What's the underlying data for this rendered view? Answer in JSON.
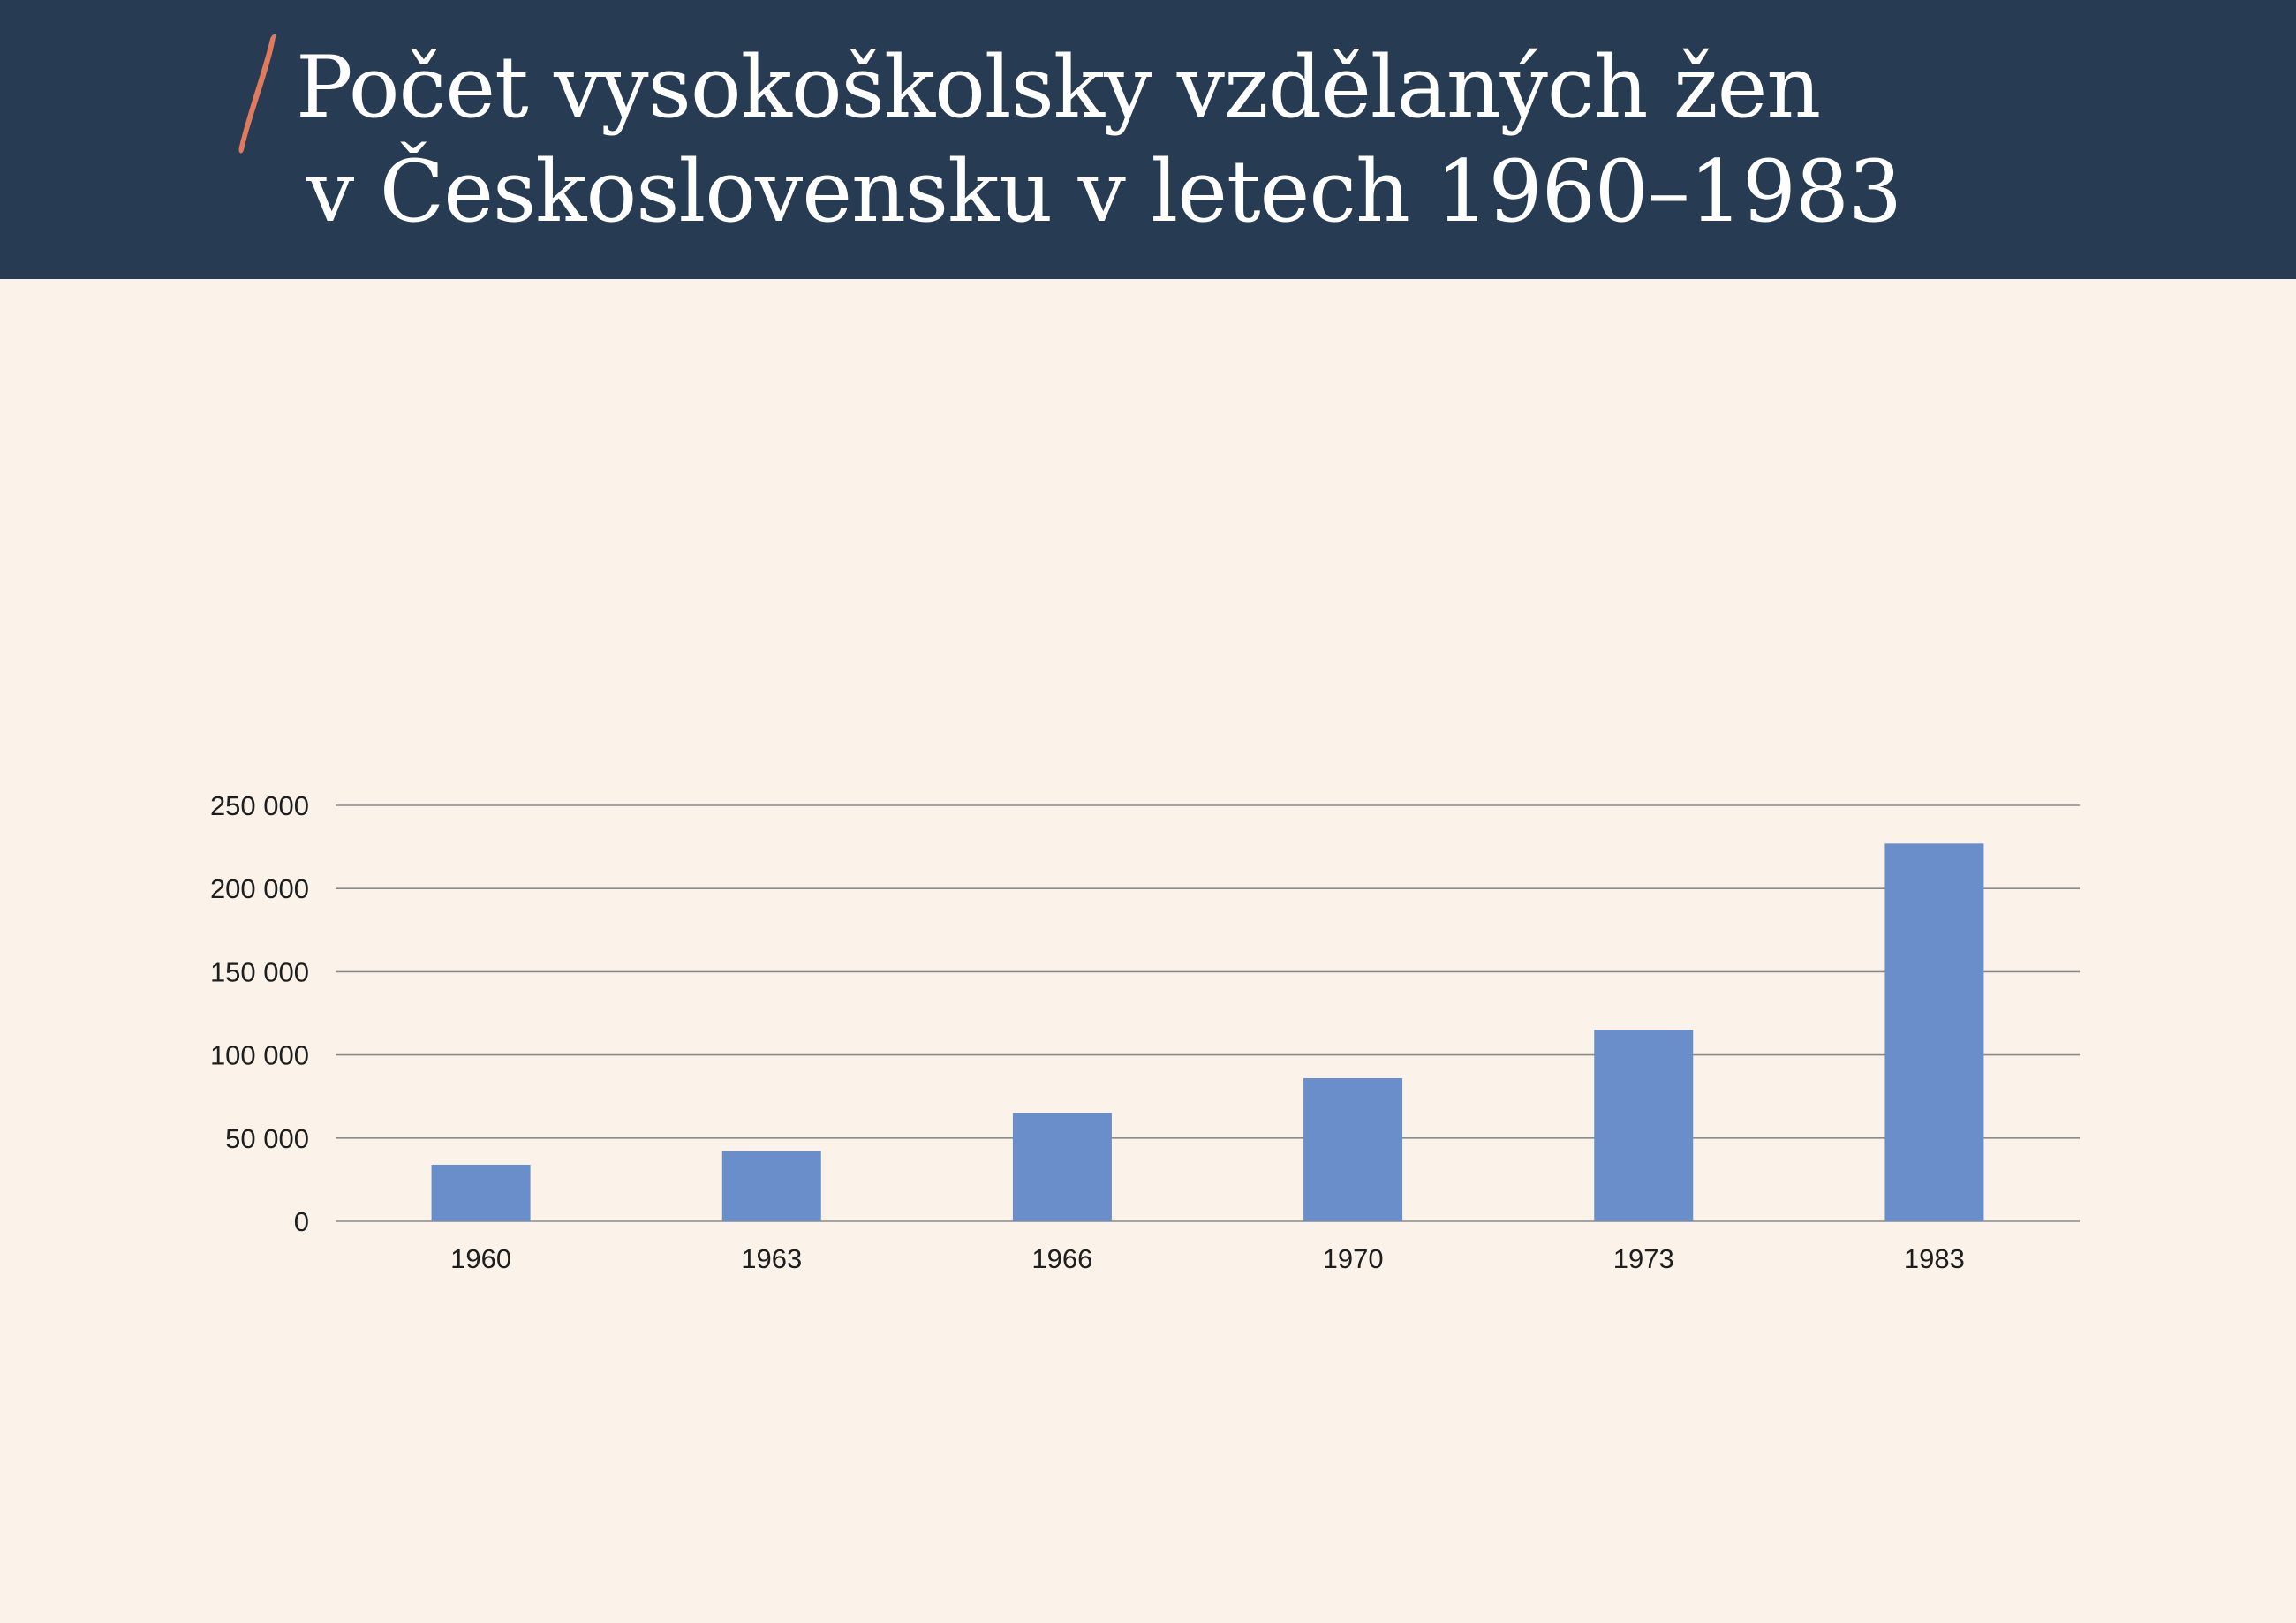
{
  "header": {
    "title_line1": "Počet vysokoškolsky vzdělaných žen",
    "title_line2": "v Československu v letech 1960–1983",
    "background_color": "#273b52",
    "accent_color": "#e07a5f"
  },
  "chart_data": {
    "type": "bar",
    "title": "Počet vysokoškolsky vzdělaných žen v Československu v letech 1960–1983",
    "xlabel": "",
    "ylabel": "",
    "categories": [
      "1960",
      "1963",
      "1966",
      "1970",
      "1973",
      "1983"
    ],
    "values": [
      34000,
      42000,
      65000,
      86000,
      115000,
      227000
    ],
    "ylim": [
      0,
      250000
    ],
    "yticks": [
      0,
      50000,
      100000,
      150000,
      200000,
      250000
    ],
    "ytick_labels": [
      "0",
      "50 000",
      "100 000",
      "150 000",
      "200 000",
      "250 000"
    ],
    "grid": true,
    "legend": "none",
    "bar_color": "#6a8ec9",
    "grid_color": "#8a8a8a"
  }
}
